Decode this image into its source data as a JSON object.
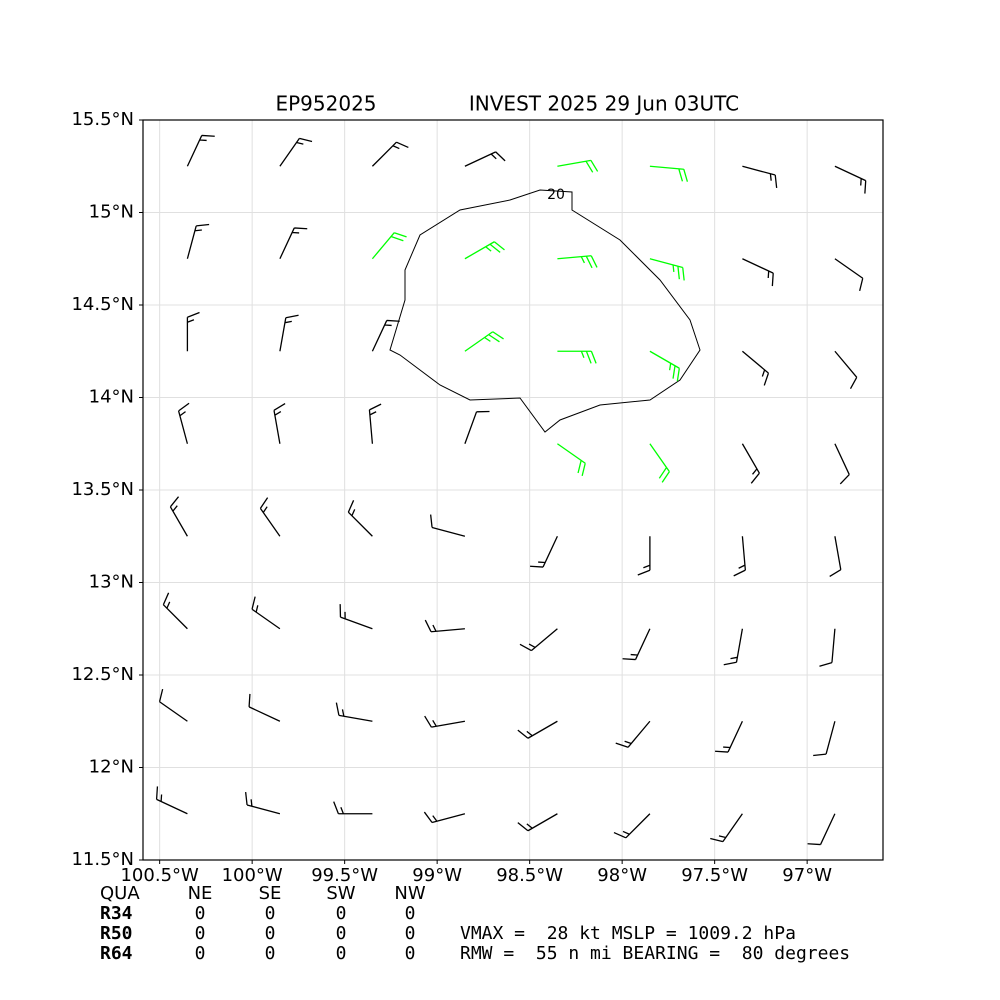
{
  "chart_data": {
    "type": "barbs",
    "storm_id": "EP952025",
    "title": "INVEST 2025 29 Jun 03UTC",
    "contour_label": "20",
    "xlim": [
      -100.59,
      -96.59
    ],
    "ylim": [
      11.5,
      15.5
    ],
    "xticks": [
      {
        "value": -100.5,
        "label": "100.5°W"
      },
      {
        "value": -100,
        "label": "100°W"
      },
      {
        "value": -99.5,
        "label": "99.5°W"
      },
      {
        "value": -99,
        "label": "99°W"
      },
      {
        "value": -98.5,
        "label": "98.5°W"
      },
      {
        "value": -98,
        "label": "98°W"
      },
      {
        "value": -97.5,
        "label": "97.5°W"
      },
      {
        "value": -97,
        "label": "97°W"
      }
    ],
    "yticks": [
      {
        "value": 11.5,
        "label": "11.5°N"
      },
      {
        "value": 12,
        "label": "12°N"
      },
      {
        "value": 12.5,
        "label": "12.5°N"
      },
      {
        "value": 13,
        "label": "13°N"
      },
      {
        "value": 13.5,
        "label": "13.5°N"
      },
      {
        "value": 14,
        "label": "14°N"
      },
      {
        "value": 14.5,
        "label": "14.5°N"
      },
      {
        "value": 15,
        "label": "15°N"
      },
      {
        "value": 15.5,
        "label": "15.5°N"
      }
    ],
    "grid": true,
    "series": [
      {
        "color": "#000000",
        "lon": [
          -100.35,
          -99.85,
          -99.35,
          -98.85,
          -97.35,
          -96.85,
          -100.35,
          -99.85,
          -97.35,
          -96.85,
          -100.35,
          -99.85,
          -99.35,
          -97.35,
          -96.85,
          -100.35,
          -99.85,
          -99.35,
          -98.85,
          -97.35,
          -96.85,
          -100.35,
          -99.85,
          -99.35,
          -98.85,
          -98.35,
          -97.85,
          -97.35,
          -96.85,
          -100.35,
          -99.85,
          -99.35,
          -98.85,
          -98.35,
          -97.85,
          -97.35,
          -96.85,
          -100.35,
          -99.85,
          -99.35,
          -98.85,
          -98.35,
          -97.85,
          -97.35,
          -96.85,
          -100.35,
          -99.85,
          -99.35,
          -98.85,
          -98.35,
          -97.85,
          -97.35,
          -96.85
        ],
        "lat": [
          15.25,
          15.25,
          15.25,
          15.25,
          15.25,
          15.25,
          14.75,
          14.75,
          14.75,
          14.75,
          14.25,
          14.25,
          14.25,
          14.25,
          14.25,
          13.75,
          13.75,
          13.75,
          13.75,
          13.75,
          13.75,
          13.25,
          13.25,
          13.25,
          13.25,
          13.25,
          13.25,
          13.25,
          13.25,
          12.75,
          12.75,
          12.75,
          12.75,
          12.75,
          12.75,
          12.75,
          12.75,
          12.25,
          12.25,
          12.25,
          12.25,
          12.25,
          12.25,
          12.25,
          12.25,
          11.75,
          11.75,
          11.75,
          11.75,
          11.75,
          11.75,
          11.75,
          11.75
        ],
        "speed": [
          15,
          15,
          15,
          15,
          15,
          15,
          15,
          15,
          15,
          12,
          15,
          15,
          18,
          15,
          12,
          15,
          15,
          15,
          10,
          15,
          12,
          15,
          15,
          15,
          12,
          15,
          18,
          15,
          12,
          15,
          15,
          15,
          15,
          15,
          15,
          15,
          12,
          12,
          12,
          15,
          15,
          15,
          15,
          15,
          12,
          15,
          15,
          15,
          15,
          15,
          15,
          15,
          12
        ],
        "direction": [
          25,
          35,
          45,
          65,
          105,
          115,
          15,
          25,
          115,
          125,
          0,
          10,
          25,
          130,
          140,
          345,
          350,
          355,
          20,
          150,
          155,
          330,
          325,
          315,
          285,
          205,
          180,
          175,
          170,
          315,
          305,
          290,
          265,
          230,
          205,
          190,
          185,
          305,
          295,
          280,
          260,
          240,
          220,
          205,
          195,
          295,
          285,
          270,
          255,
          240,
          225,
          215,
          205
        ]
      },
      {
        "color": "#00ff00",
        "lon": [
          -98.35,
          -97.85,
          -99.35,
          -98.85,
          -98.35,
          -97.85,
          -98.85,
          -98.35,
          -97.85,
          -98.35,
          -97.85
        ],
        "lat": [
          15.25,
          15.25,
          14.75,
          14.75,
          14.75,
          14.75,
          14.25,
          14.25,
          14.25,
          13.75,
          13.75
        ],
        "speed": [
          20,
          22,
          20,
          25,
          25,
          25,
          25,
          28,
          25,
          22,
          20
        ],
        "direction": [
          80,
          95,
          40,
          60,
          85,
          105,
          55,
          90,
          120,
          125,
          145
        ]
      }
    ]
  },
  "radii_table": {
    "header": [
      "QUA",
      "NE",
      "SE",
      "SW",
      "NW"
    ],
    "rows": [
      [
        "R34",
        0,
        0,
        0,
        0
      ],
      [
        "R50",
        0,
        0,
        0,
        0
      ],
      [
        "R64",
        0,
        0,
        0,
        0
      ]
    ]
  },
  "info": [
    "VMAX =  28 kt MSLP = 1009.2 hPa",
    "RMW =  55 n mi BEARING =  80 degrees"
  ]
}
